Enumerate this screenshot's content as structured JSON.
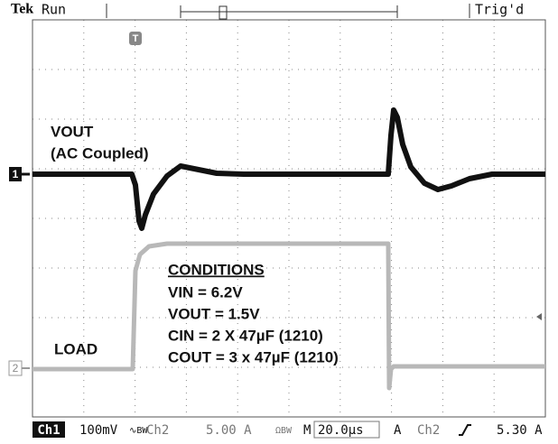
{
  "header": {
    "brand": "Tek",
    "state": "Run",
    "trigger_status": "Trig'd",
    "trigger_marker": "T"
  },
  "labels": {
    "vout": "VOUT",
    "coupling": "(AC Coupled)",
    "load": "LOAD"
  },
  "channel_markers": [
    "1",
    "2"
  ],
  "conditions": {
    "title": "CONDITIONS",
    "lines": [
      "VIN = 6.2V",
      "VOUT = 1.5V",
      "CIN = 2 X 47µF (1210)",
      "COUT = 3 x 47µF (1210)"
    ]
  },
  "status_bar": {
    "ch1": "Ch1",
    "ch1_scale": "100mV",
    "ch1_bw": "∿BW",
    "ch2": "Ch2",
    "ch2_scale": "5.00 A",
    "ch2_bw": "ΩBW",
    "timebase_label": "M",
    "timebase": "20.0µs",
    "trigger_mode": "A",
    "trigger_source": "Ch2",
    "trigger_level": "5.30 A"
  }
}
